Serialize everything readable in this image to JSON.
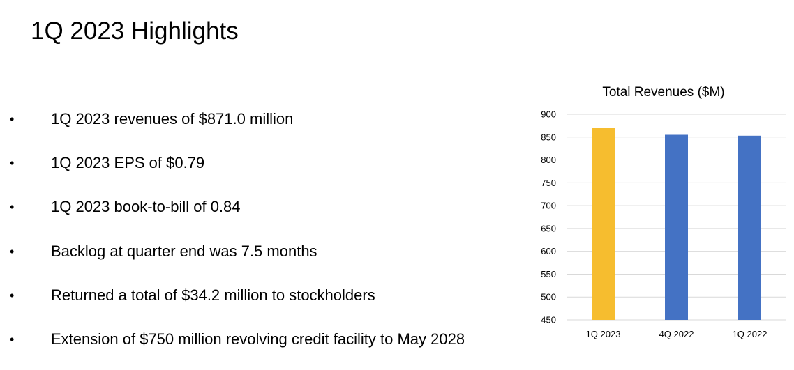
{
  "slide": {
    "title": "1Q 2023 Highlights"
  },
  "bullets": [
    {
      "symbol": "•",
      "text": "1Q 2023 revenues of $871.0 million"
    },
    {
      "symbol": "•",
      "text": "1Q 2023 EPS of $0.79"
    },
    {
      "symbol": "•",
      "text": "1Q 2023 book-to-bill of 0.84"
    },
    {
      "symbol": "•",
      "text": "Backlog at quarter end was 7.5 months"
    },
    {
      "symbol": "•",
      "text": "Returned a total of $34.2 million to stockholders"
    },
    {
      "symbol": "•",
      "text": "Extension of $750 million revolving credit facility to May 2028"
    }
  ],
  "chart_data": {
    "type": "bar",
    "title": "Total Revenues ($M)",
    "categories": [
      "1Q 2023",
      "4Q 2022",
      "1Q 2022"
    ],
    "values": [
      871,
      855,
      853
    ],
    "bar_colors": [
      "#F6BD2F",
      "#4472C4",
      "#4472C4"
    ],
    "ylim": [
      450,
      900
    ],
    "yticks": [
      900,
      850,
      800,
      750,
      700,
      650,
      600,
      550,
      500,
      450
    ],
    "xlabel": "",
    "ylabel": "",
    "grid": true,
    "legend": "none"
  }
}
